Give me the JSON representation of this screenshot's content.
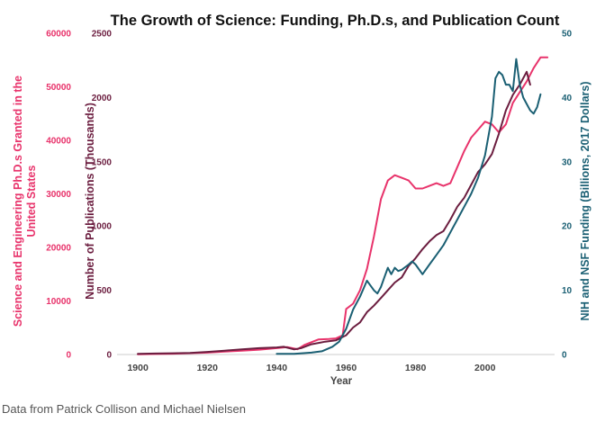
{
  "source_note": "Data from Patrick Collison and Michael Nielsen",
  "colors": {
    "phds": "#e8336b",
    "publications": "#6b1d3f",
    "funding": "#1a5f73",
    "title": "#111111",
    "axis_tick": "#444444"
  },
  "chart_data": {
    "type": "line",
    "title": "The Growth of Science: Funding, Ph.D.s, and Publication Count",
    "xlabel": "Year",
    "xlim": [
      1894,
      2019
    ],
    "xticks": [
      1900,
      1920,
      1940,
      1960,
      1980,
      2000
    ],
    "grid": false,
    "axes": {
      "left_outer": {
        "label": "Science and Engineering Ph.D.s Granted in the United States",
        "range": [
          0,
          60000
        ],
        "ticks": [
          0,
          10000,
          20000,
          30000,
          40000,
          50000,
          60000
        ],
        "color": "#e8336b"
      },
      "left_inner": {
        "label": "Number of Publications (Thousands)",
        "range": [
          0,
          2500
        ],
        "ticks": [
          0,
          500,
          1000,
          1500,
          2000,
          2500
        ],
        "color": "#6b1d3f"
      },
      "right": {
        "label": "NIH and NSF Funding (Billions, 2017 Dollars)",
        "range": [
          0,
          50
        ],
        "ticks": [
          0,
          10,
          20,
          30,
          40,
          50
        ],
        "color": "#1a5f73"
      }
    },
    "series": [
      {
        "axis": "left_outer",
        "color": "#e8336b",
        "points": [
          [
            1900,
            50
          ],
          [
            1905,
            100
          ],
          [
            1910,
            150
          ],
          [
            1915,
            250
          ],
          [
            1920,
            350
          ],
          [
            1925,
            550
          ],
          [
            1930,
            700
          ],
          [
            1935,
            900
          ],
          [
            1940,
            1200
          ],
          [
            1943,
            1400
          ],
          [
            1946,
            1000
          ],
          [
            1948,
            1800
          ],
          [
            1952,
            2800
          ],
          [
            1955,
            2900
          ],
          [
            1957,
            3000
          ],
          [
            1959,
            3600
          ],
          [
            1960,
            8500
          ],
          [
            1962,
            9500
          ],
          [
            1964,
            12000
          ],
          [
            1966,
            16000
          ],
          [
            1968,
            22000
          ],
          [
            1970,
            29000
          ],
          [
            1972,
            32500
          ],
          [
            1974,
            33500
          ],
          [
            1976,
            33000
          ],
          [
            1978,
            32500
          ],
          [
            1980,
            31000
          ],
          [
            1982,
            31000
          ],
          [
            1984,
            31500
          ],
          [
            1986,
            32000
          ],
          [
            1988,
            31500
          ],
          [
            1990,
            32000
          ],
          [
            1992,
            35000
          ],
          [
            1994,
            38000
          ],
          [
            1996,
            40500
          ],
          [
            1998,
            42000
          ],
          [
            2000,
            43500
          ],
          [
            2002,
            43000
          ],
          [
            2004,
            41500
          ],
          [
            2006,
            43000
          ],
          [
            2008,
            47000
          ],
          [
            2010,
            49000
          ],
          [
            2012,
            51000
          ],
          [
            2014,
            53500
          ],
          [
            2016,
            55500
          ],
          [
            2018,
            55500
          ]
        ]
      },
      {
        "axis": "left_inner",
        "color": "#6b1d3f",
        "points": [
          [
            1900,
            5
          ],
          [
            1905,
            8
          ],
          [
            1910,
            10
          ],
          [
            1915,
            12
          ],
          [
            1920,
            20
          ],
          [
            1925,
            30
          ],
          [
            1930,
            40
          ],
          [
            1935,
            50
          ],
          [
            1940,
            55
          ],
          [
            1942,
            60
          ],
          [
            1945,
            40
          ],
          [
            1947,
            50
          ],
          [
            1950,
            80
          ],
          [
            1954,
            100
          ],
          [
            1957,
            110
          ],
          [
            1960,
            150
          ],
          [
            1962,
            210
          ],
          [
            1964,
            250
          ],
          [
            1966,
            330
          ],
          [
            1968,
            380
          ],
          [
            1970,
            440
          ],
          [
            1972,
            500
          ],
          [
            1974,
            560
          ],
          [
            1976,
            600
          ],
          [
            1978,
            690
          ],
          [
            1980,
            750
          ],
          [
            1982,
            820
          ],
          [
            1984,
            880
          ],
          [
            1986,
            930
          ],
          [
            1988,
            960
          ],
          [
            1990,
            1050
          ],
          [
            1992,
            1150
          ],
          [
            1994,
            1220
          ],
          [
            1996,
            1320
          ],
          [
            1998,
            1420
          ],
          [
            2000,
            1480
          ],
          [
            2002,
            1560
          ],
          [
            2004,
            1720
          ],
          [
            2006,
            1900
          ],
          [
            2008,
            2020
          ],
          [
            2010,
            2100
          ],
          [
            2012,
            2200
          ],
          [
            2013,
            2100
          ]
        ]
      },
      {
        "axis": "right",
        "color": "#1a5f73",
        "points": [
          [
            1940,
            0.1
          ],
          [
            1945,
            0.1
          ],
          [
            1950,
            0.3
          ],
          [
            1953,
            0.5
          ],
          [
            1956,
            1.2
          ],
          [
            1958,
            2
          ],
          [
            1960,
            4
          ],
          [
            1962,
            7
          ],
          [
            1964,
            9
          ],
          [
            1966,
            11.5
          ],
          [
            1968,
            10
          ],
          [
            1969,
            9.5
          ],
          [
            1970,
            10.5
          ],
          [
            1971,
            12
          ],
          [
            1972,
            13.5
          ],
          [
            1973,
            12.5
          ],
          [
            1974,
            13.5
          ],
          [
            1975,
            13
          ],
          [
            1976,
            13.2
          ],
          [
            1978,
            14
          ],
          [
            1979,
            14.5
          ],
          [
            1980,
            14
          ],
          [
            1982,
            12.5
          ],
          [
            1984,
            14
          ],
          [
            1986,
            15.5
          ],
          [
            1988,
            17
          ],
          [
            1990,
            19
          ],
          [
            1992,
            21
          ],
          [
            1994,
            23
          ],
          [
            1996,
            25
          ],
          [
            1998,
            27.5
          ],
          [
            2000,
            31
          ],
          [
            2002,
            37
          ],
          [
            2003,
            43
          ],
          [
            2004,
            44
          ],
          [
            2005,
            43.5
          ],
          [
            2006,
            42
          ],
          [
            2007,
            42
          ],
          [
            2008,
            41
          ],
          [
            2009,
            46
          ],
          [
            2010,
            42
          ],
          [
            2011,
            40
          ],
          [
            2012,
            39
          ],
          [
            2013,
            38
          ],
          [
            2014,
            37.5
          ],
          [
            2015,
            38.5
          ],
          [
            2016,
            40.5
          ]
        ]
      }
    ]
  }
}
